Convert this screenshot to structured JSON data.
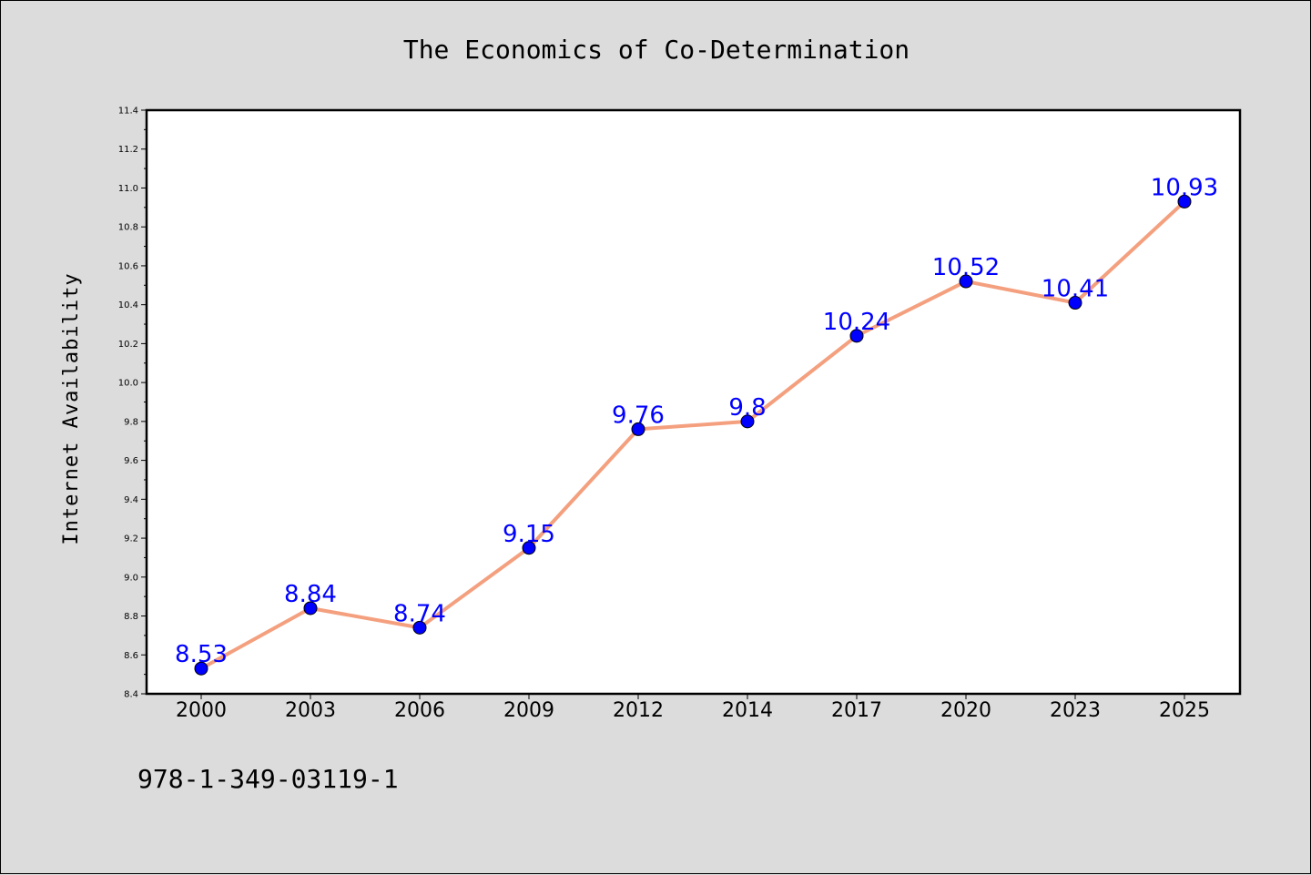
{
  "chart_data": {
    "type": "line",
    "title": "The Economics of Co-Determination",
    "xlabel": "",
    "ylabel": "Internet Availability",
    "categories": [
      "2000",
      "2003",
      "2006",
      "2009",
      "2012",
      "2014",
      "2017",
      "2020",
      "2023",
      "2025"
    ],
    "series": [
      {
        "values": [
          8.53,
          8.84,
          8.74,
          9.15,
          9.76,
          9.8,
          10.24,
          10.52,
          10.41,
          10.93
        ],
        "labels": [
          "8.53",
          "8.84",
          "8.74",
          "9.15",
          "9.76",
          "9.8",
          "10.24",
          "10.52",
          "10.41",
          "10.93"
        ]
      }
    ],
    "ylim": [
      8.4,
      11.4
    ],
    "yticks": [
      "8.4",
      "8.6",
      "8.8",
      "9.0",
      "9.2",
      "9.4",
      "9.6",
      "9.8",
      "10.0",
      "10.2",
      "10.4",
      "10.6",
      "10.8",
      "11.0",
      "11.2",
      "11.4"
    ],
    "grid": false,
    "colors": {
      "line": "#f4a07f",
      "marker": "#0000ff",
      "label": "#0000ff",
      "background": "#dcdcdc",
      "plot_background": "#ffffff"
    }
  },
  "footer": {
    "code": "978-1-349-03119-1"
  }
}
